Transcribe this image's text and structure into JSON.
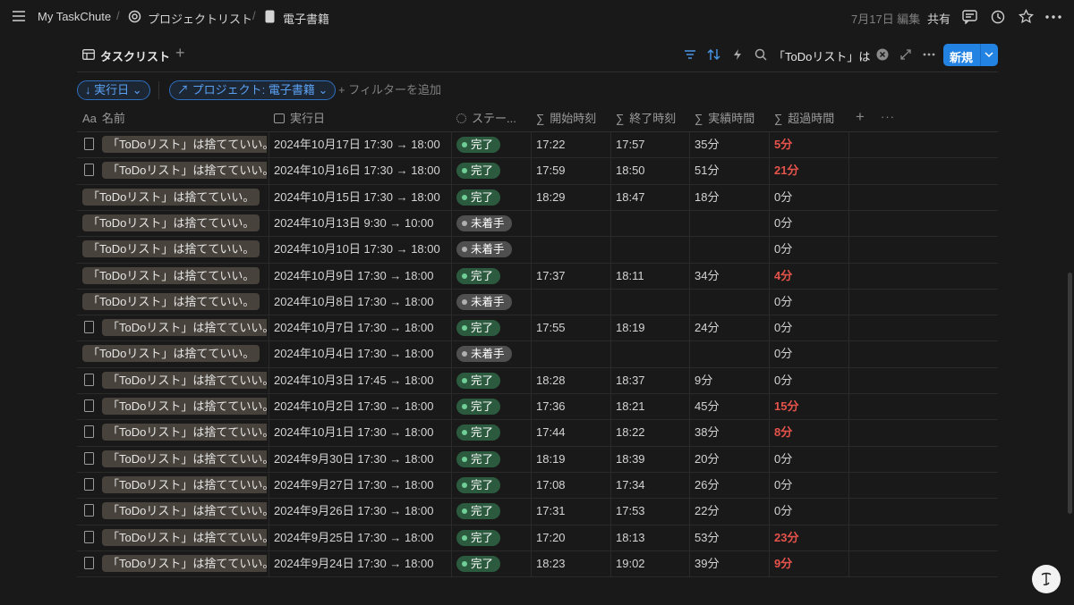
{
  "header": {
    "breadcrumbs": [
      "My TaskChute",
      "プロジェクトリスト",
      "電子書籍"
    ],
    "edited": "7月17日 編集",
    "share": "共有"
  },
  "view": {
    "name": "タスクリスト",
    "search": "「ToDoリスト」は捨",
    "new_button": "新規"
  },
  "filters": {
    "sort": "実行日",
    "project": "プロジェクト: 電子書籍",
    "add": "フィルターを追加"
  },
  "table": {
    "name_icon": "Aa",
    "sum_icon": "∑",
    "columns": [
      "名前",
      "実行日",
      "ステー...",
      "開始時刻",
      "終了時刻",
      "実績時間",
      "超過時間"
    ],
    "rows": [
      {
        "doc": true,
        "name": "「ToDoリスト」は捨てていい。",
        "date": "2024年10月17日 17:30 → 18:00",
        "status": "完了",
        "start": "17:22",
        "end": "17:57",
        "actual": "35分",
        "over": "5分"
      },
      {
        "doc": true,
        "name": "「ToDoリスト」は捨てていい。",
        "date": "2024年10月16日 17:30 → 18:00",
        "status": "完了",
        "start": "17:59",
        "end": "18:50",
        "actual": "51分",
        "over": "21分"
      },
      {
        "doc": false,
        "name": "「ToDoリスト」は捨てていい。",
        "date": "2024年10月15日 17:30 → 18:00",
        "status": "完了",
        "start": "18:29",
        "end": "18:47",
        "actual": "18分",
        "over": "0分"
      },
      {
        "doc": false,
        "name": "「ToDoリスト」は捨てていい。",
        "date": "2024年10月13日 9:30 → 10:00",
        "status": "未着手",
        "start": null,
        "end": null,
        "actual": null,
        "over": "0分"
      },
      {
        "doc": false,
        "name": "「ToDoリスト」は捨てていい。",
        "date": "2024年10月10日 17:30 → 18:00",
        "status": "未着手",
        "start": null,
        "end": null,
        "actual": null,
        "over": "0分"
      },
      {
        "doc": false,
        "name": "「ToDoリスト」は捨てていい。",
        "date": "2024年10月9日 17:30 → 18:00",
        "status": "完了",
        "start": "17:37",
        "end": "18:11",
        "actual": "34分",
        "over": "4分"
      },
      {
        "doc": false,
        "name": "「ToDoリスト」は捨てていい。",
        "date": "2024年10月8日 17:30 → 18:00",
        "status": "未着手",
        "start": null,
        "end": null,
        "actual": null,
        "over": "0分"
      },
      {
        "doc": true,
        "name": "「ToDoリスト」は捨てていい。",
        "date": "2024年10月7日 17:30 → 18:00",
        "status": "完了",
        "start": "17:55",
        "end": "18:19",
        "actual": "24分",
        "over": "0分"
      },
      {
        "doc": false,
        "name": "「ToDoリスト」は捨てていい。",
        "date": "2024年10月4日 17:30 → 18:00",
        "status": "未着手",
        "start": null,
        "end": null,
        "actual": null,
        "over": "0分"
      },
      {
        "doc": true,
        "name": "「ToDoリスト」は捨てていい。",
        "date": "2024年10月3日 17:45 → 18:00",
        "status": "完了",
        "start": "18:28",
        "end": "18:37",
        "actual": "9分",
        "over": "0分"
      },
      {
        "doc": true,
        "name": "「ToDoリスト」は捨てていい。",
        "date": "2024年10月2日 17:30 → 18:00",
        "status": "完了",
        "start": "17:36",
        "end": "18:21",
        "actual": "45分",
        "over": "15分"
      },
      {
        "doc": true,
        "name": "「ToDoリスト」は捨てていい。",
        "date": "2024年10月1日 17:30 → 18:00",
        "status": "完了",
        "start": "17:44",
        "end": "18:22",
        "actual": "38分",
        "over": "8分"
      },
      {
        "doc": true,
        "name": "「ToDoリスト」は捨てていい。",
        "date": "2024年9月30日 17:30 → 18:00",
        "status": "完了",
        "start": "18:19",
        "end": "18:39",
        "actual": "20分",
        "over": "0分"
      },
      {
        "doc": true,
        "name": "「ToDoリスト」は捨てていい。",
        "date": "2024年9月27日 17:30 → 18:00",
        "status": "完了",
        "start": "17:08",
        "end": "17:34",
        "actual": "26分",
        "over": "0分"
      },
      {
        "doc": true,
        "name": "「ToDoリスト」は捨てていい。",
        "date": "2024年9月26日 17:30 → 18:00",
        "status": "完了",
        "start": "17:31",
        "end": "17:53",
        "actual": "22分",
        "over": "0分"
      },
      {
        "doc": true,
        "name": "「ToDoリスト」は捨てていい。",
        "date": "2024年9月25日 17:30 → 18:00",
        "status": "完了",
        "start": "17:20",
        "end": "18:13",
        "actual": "53分",
        "over": "23分"
      },
      {
        "doc": true,
        "name": "「ToDoリスト」は捨てていい。",
        "date": "2024年9月24日 17:30 → 18:00",
        "status": "完了",
        "start": "18:23",
        "end": "19:02",
        "actual": "39分",
        "over": "9分"
      }
    ]
  }
}
